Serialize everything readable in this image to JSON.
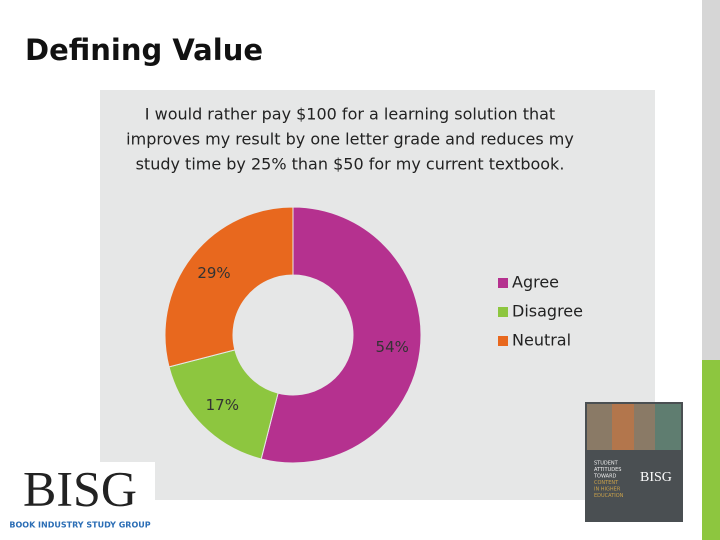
{
  "slide_title": "Defining Value",
  "chart_data": {
    "type": "donut",
    "title": [
      "I would rather pay $100 for a learning solution that",
      "improves my result by one letter grade and reduces my",
      "study time by 25% than $50 for my current textbook."
    ],
    "categories": [
      "Agree",
      "Disagree",
      "Neutral"
    ],
    "values": [
      54,
      17,
      29
    ],
    "value_labels": [
      "54%",
      "17%",
      "29%"
    ],
    "colors": [
      "#b5318f",
      "#8dc63f",
      "#e8681e"
    ],
    "legend": "right"
  },
  "logo": {
    "name": "BISG",
    "tagline": "BOOK INDUSTRY STUDY GROUP"
  },
  "cover": {
    "lines": [
      "STUDENT",
      "ATTITUDES",
      "TOWARD",
      "CONTENT",
      "IN HIGHER",
      "EDUCATION"
    ],
    "brand": "BISG"
  }
}
